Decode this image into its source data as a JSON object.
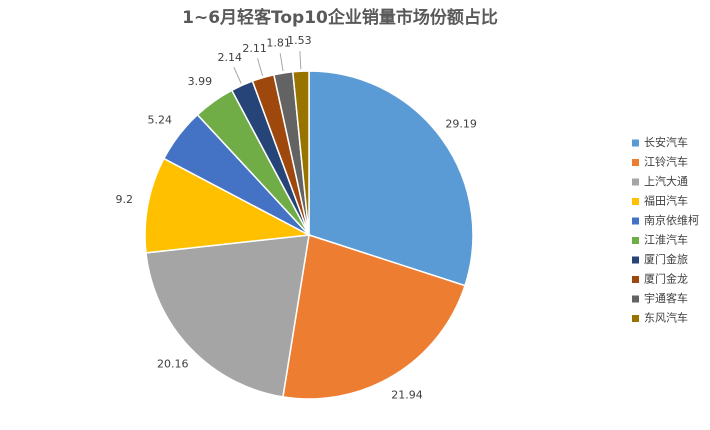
{
  "chart_data": {
    "type": "pie",
    "title": "1~6月轻客Top10企业销量市场份额占比",
    "categories": [
      "长安汽车",
      "江铃汽车",
      "上汽大通",
      "福田汽车",
      "南京依维柯",
      "江淮汽车",
      "厦门金旅",
      "厦门金龙",
      "宇通客车",
      "东风汽车"
    ],
    "values": [
      29.19,
      21.94,
      20.16,
      9.2,
      5.24,
      3.99,
      2.14,
      2.11,
      1.81,
      1.53
    ],
    "colors": [
      "#5b9bd5",
      "#ed7d31",
      "#a5a5a5",
      "#ffc000",
      "#4472c4",
      "#70ad47",
      "#264478",
      "#9e480e",
      "#636363",
      "#997300"
    ],
    "legend": "right"
  }
}
